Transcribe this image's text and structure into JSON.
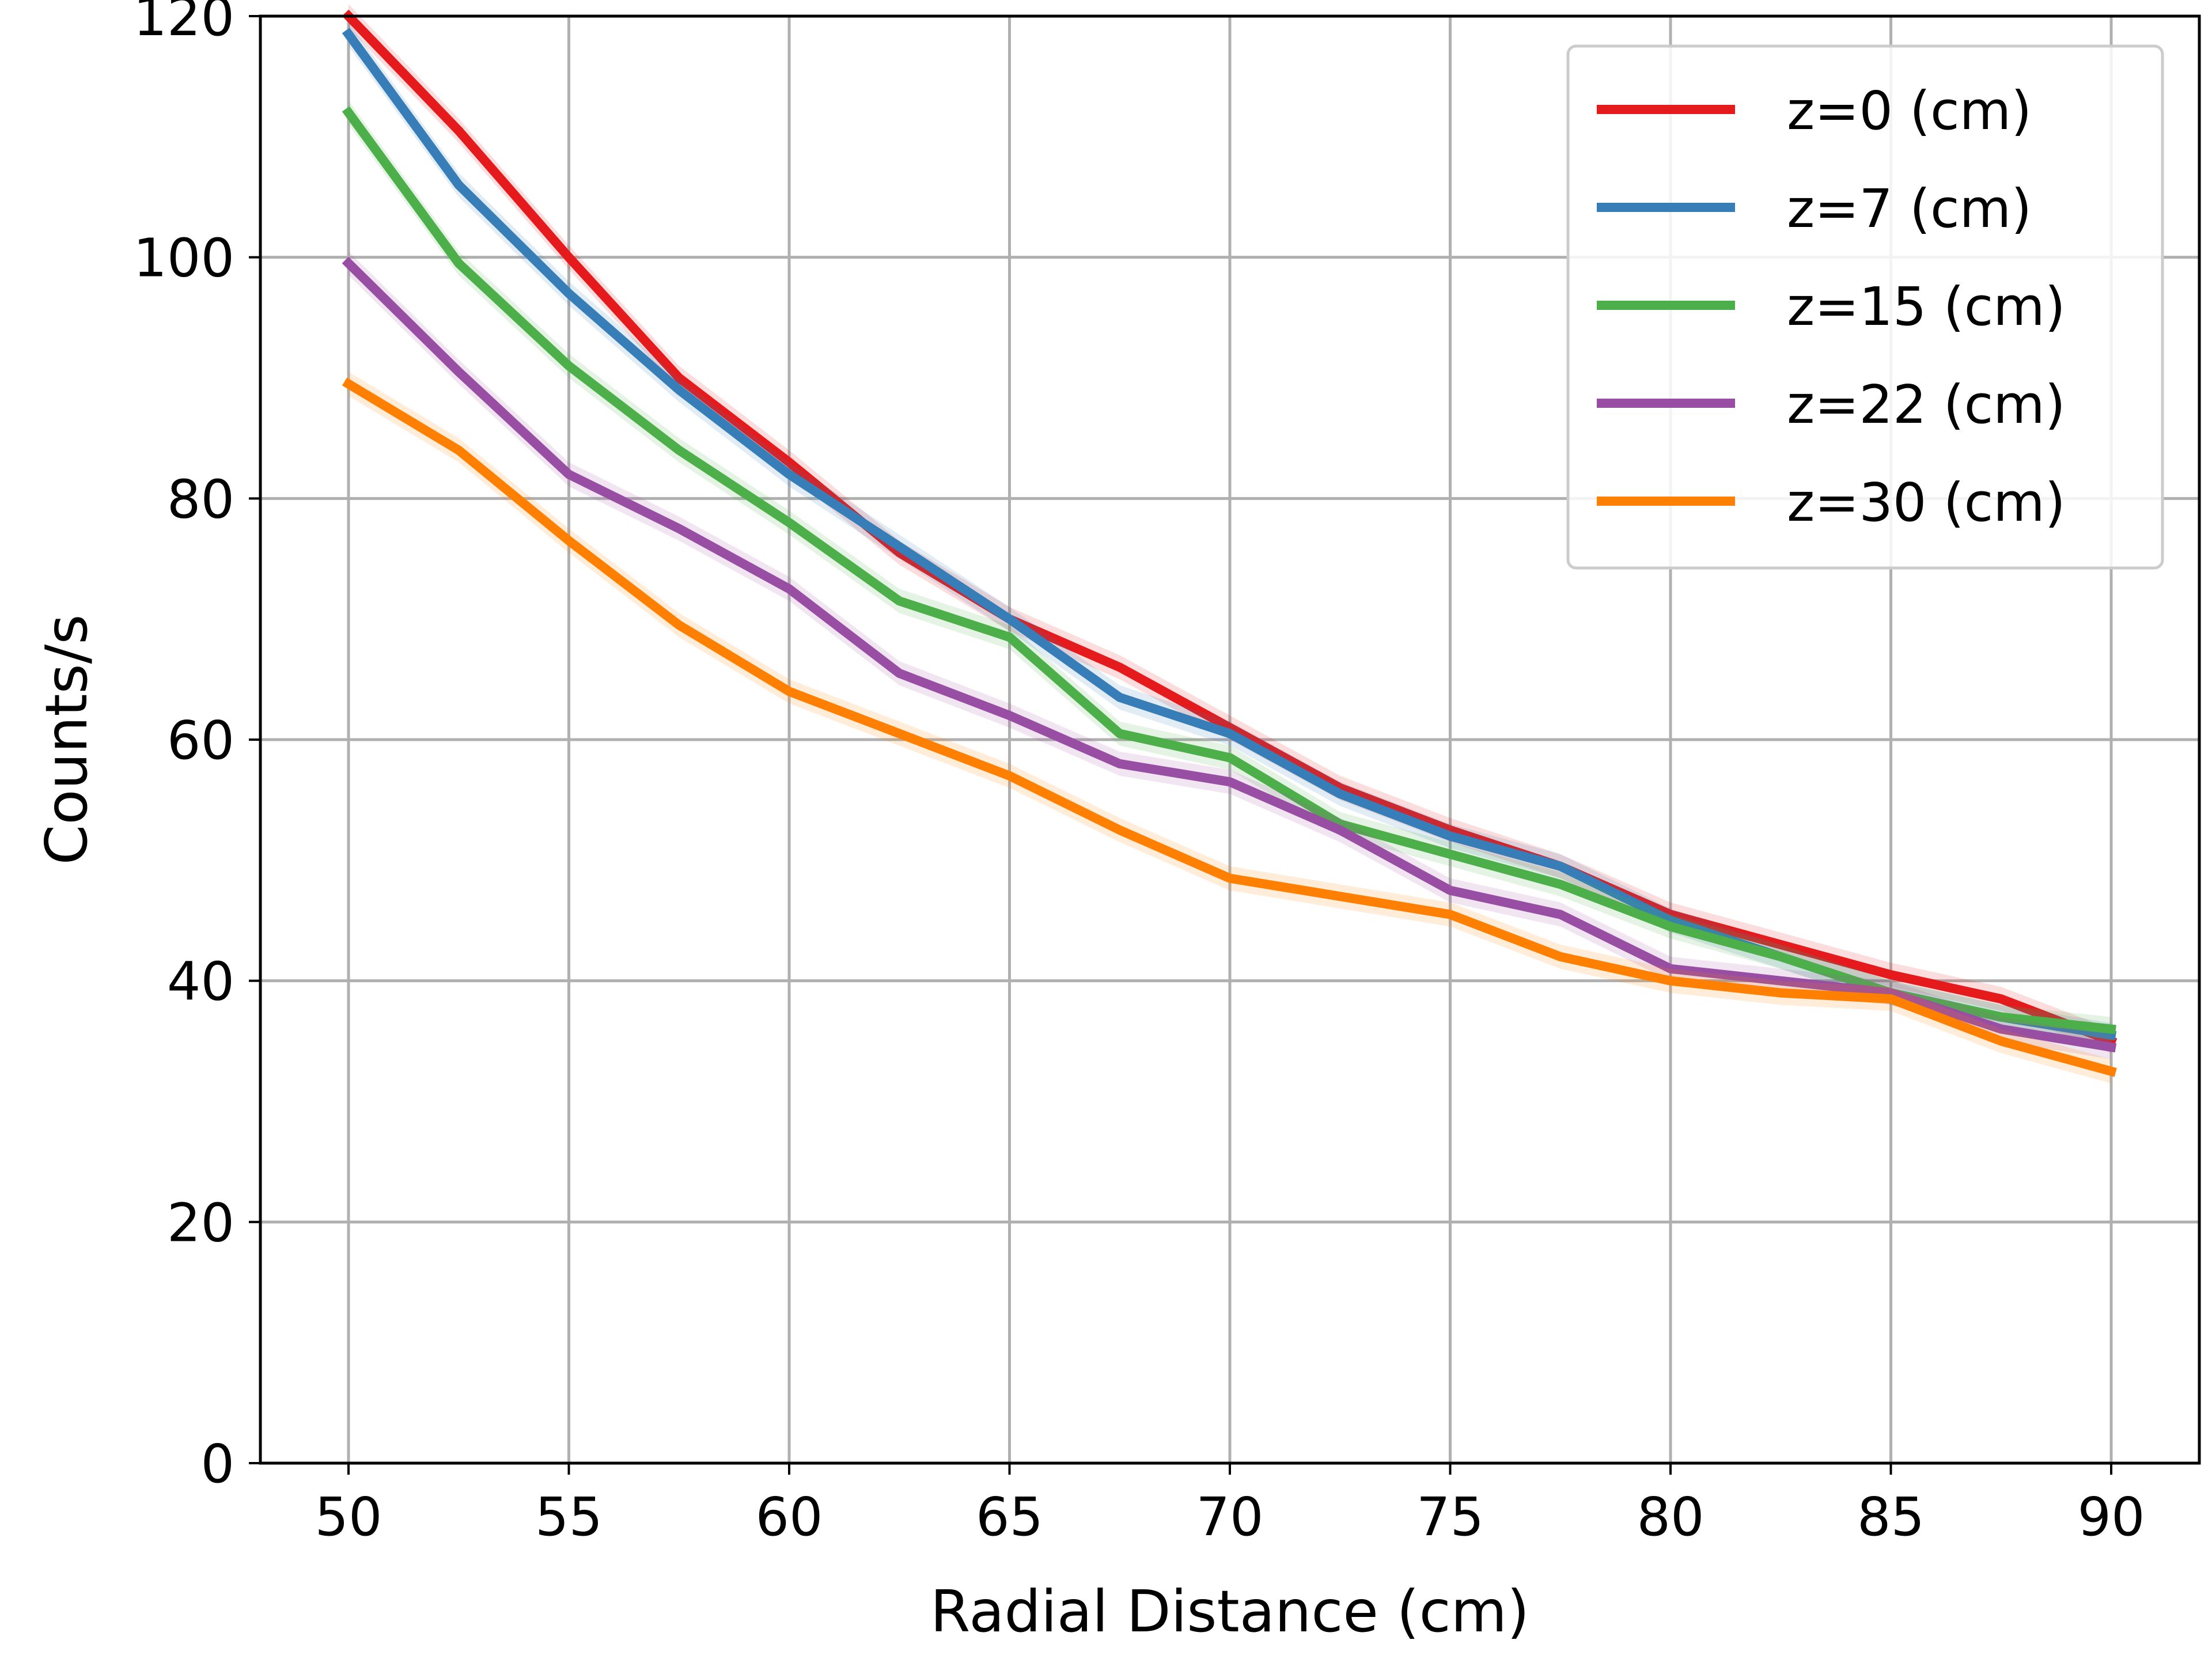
{
  "chart_data": {
    "type": "line",
    "xlabel": "Radial Distance (cm)",
    "ylabel": "Counts/s",
    "xlim": [
      48,
      92
    ],
    "ylim": [
      0,
      120
    ],
    "xticks": [
      50,
      55,
      60,
      65,
      70,
      75,
      80,
      85,
      90
    ],
    "yticks": [
      0,
      20,
      40,
      60,
      80,
      100,
      120
    ],
    "grid": true,
    "legend_position": "top-right",
    "x": [
      50,
      52.5,
      55,
      57.5,
      60,
      62.5,
      65,
      67.5,
      70,
      72.5,
      75,
      77.5,
      80,
      82.5,
      85,
      87.5,
      90
    ],
    "series": [
      {
        "name": "z=0 (cm)",
        "color": "#e41a1c",
        "values": [
          120,
          110.5,
          100,
          90,
          83,
          75.5,
          70,
          66,
          61,
          56,
          52.5,
          49.5,
          45.5,
          43,
          40.5,
          38.5,
          35
        ]
      },
      {
        "name": "z=7 (cm)",
        "color": "#377eb8",
        "values": [
          118.5,
          106,
          97,
          89,
          82,
          76,
          70,
          63.5,
          60.5,
          55.5,
          52,
          49.5,
          45,
          42,
          39,
          37,
          35.5
        ]
      },
      {
        "name": "z=15 (cm)",
        "color": "#4daf4a",
        "values": [
          112,
          99.5,
          91,
          84,
          78,
          71.5,
          68.5,
          60.5,
          58.5,
          53,
          50.5,
          48,
          44.5,
          42,
          39,
          37,
          36
        ]
      },
      {
        "name": "z=22 (cm)",
        "color": "#984ea3",
        "values": [
          99.5,
          90.5,
          82,
          77.5,
          72.5,
          65.5,
          62,
          58,
          56.5,
          52.5,
          47.5,
          45.5,
          41,
          40,
          39,
          36,
          34.5
        ]
      },
      {
        "name": "z=30 (cm)",
        "color": "#ff7f00",
        "values": [
          89.5,
          84,
          76.5,
          69.5,
          64,
          60.5,
          57,
          52.5,
          48.5,
          47,
          45.5,
          42,
          40,
          39,
          38.5,
          35,
          32.5
        ]
      }
    ]
  }
}
